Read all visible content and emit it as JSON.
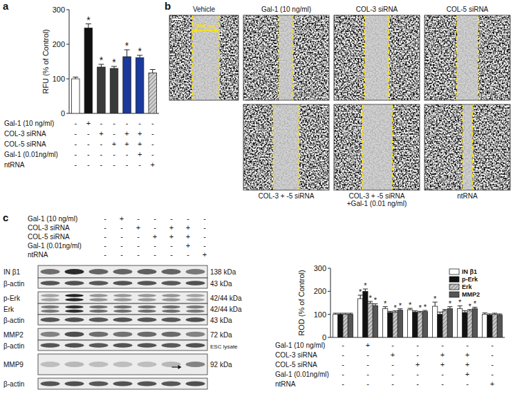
{
  "chart_data": [
    {
      "type": "bar",
      "panel_label": "a",
      "y_label": "RFU (% of Control)",
      "categories": [
        null,
        null,
        null,
        null,
        null,
        null,
        null
      ],
      "values": [
        100,
        247,
        134,
        130,
        164,
        161,
        117
      ],
      "errors": [
        5,
        12,
        8,
        6,
        20,
        7,
        10
      ],
      "colors": [
        "#ffffff",
        "#111111",
        "#3a3a3a",
        "#3a3a3a",
        "#1a3a9c",
        "#1a3a9c",
        "#d0d0d0"
      ],
      "annotations": [
        null,
        "*",
        "*",
        "*",
        "*",
        "*",
        null
      ],
      "ylim": [
        0,
        300
      ],
      "yticks": [
        0,
        100,
        200,
        300
      ],
      "conditions": [
        {
          "label": "Gal-1 (10 ng/ml)",
          "signs": [
            "-",
            "+",
            "-",
            "-",
            "-",
            "-",
            "-"
          ]
        },
        {
          "label": "COL-3 siRNA",
          "signs": [
            "-",
            "-",
            "+",
            "-",
            "+",
            "+",
            "-"
          ]
        },
        {
          "label": "COL-5 siRNA",
          "signs": [
            "-",
            "-",
            "-",
            "+",
            "+",
            "+",
            "-"
          ]
        },
        {
          "label": "Gal-1 (0.01ng/ml)",
          "signs": [
            "-",
            "-",
            "-",
            "-",
            "-",
            "+",
            "-"
          ]
        },
        {
          "label": "ntRNA",
          "signs": [
            "-",
            "-",
            "-",
            "-",
            "-",
            "-",
            "+"
          ]
        }
      ]
    },
    {
      "type": "bar",
      "y_label": "ROD (% of Control)",
      "categories": [
        null,
        null,
        null,
        null,
        null,
        null,
        null
      ],
      "series": [
        {
          "name": "IN β1",
          "color": "#ffffff",
          "values": [
            100,
            168,
            125,
            120,
            135,
            125,
            100
          ],
          "errors": [
            5,
            15,
            8,
            6,
            18,
            12,
            6
          ],
          "annotations": [
            null,
            "*",
            "*",
            "*",
            "*",
            "*",
            null
          ]
        },
        {
          "name": "p-Erk",
          "color": "#111111",
          "values": [
            100,
            200,
            108,
            110,
            100,
            108,
            97
          ],
          "errors": [
            5,
            10,
            5,
            5,
            10,
            8,
            5
          ],
          "annotations": [
            null,
            "*",
            null,
            null,
            null,
            null,
            null
          ]
        },
        {
          "name": "Erk",
          "color": "#c8c8c8",
          "values": [
            100,
            148,
            110,
            108,
            115,
            115,
            100
          ],
          "errors": [
            5,
            8,
            5,
            5,
            6,
            6,
            5
          ],
          "annotations": [
            null,
            "*",
            "*",
            "*",
            null,
            "*",
            null
          ]
        },
        {
          "name": "MMP2",
          "color": "#555555",
          "values": [
            100,
            138,
            118,
            112,
            125,
            125,
            97
          ],
          "errors": [
            5,
            8,
            6,
            5,
            8,
            6,
            5
          ],
          "annotations": [
            null,
            "*",
            "*",
            "*",
            "*",
            "*",
            null
          ]
        }
      ],
      "legend": "top-right",
      "ylim": [
        0,
        300
      ],
      "yticks": [
        0,
        100,
        200,
        300
      ],
      "conditions": [
        {
          "label": "Gal-1 (10 ng/ml)",
          "signs": [
            "-",
            "+",
            "-",
            "-",
            "-",
            "-",
            "-"
          ]
        },
        {
          "label": "COL-3 siRNA",
          "signs": [
            "-",
            "-",
            "+",
            "-",
            "+",
            "+",
            "-"
          ]
        },
        {
          "label": "COL-5 siRNA",
          "signs": [
            "-",
            "-",
            "-",
            "+",
            "+",
            "+",
            "-"
          ]
        },
        {
          "label": "Gal-1 (0.01ng/ml)",
          "signs": [
            "-",
            "-",
            "-",
            "-",
            "-",
            "+",
            "-"
          ]
        },
        {
          "label": "ntRNA",
          "signs": [
            "-",
            "-",
            "-",
            "-",
            "-",
            "-",
            "+"
          ]
        }
      ]
    }
  ],
  "scratch_assay": {
    "panel_label": "b",
    "scale_bar": "500 μm",
    "top_row": [
      [
        "Vehicle"
      ],
      [
        "Gal-1 (10 ng/ml)"
      ],
      [
        "COL-3 siRNA"
      ],
      [
        "COL-5 siRNA"
      ]
    ],
    "bottom_row": [
      [
        "COL-3 + -5 siRNA"
      ],
      [
        "COL-3 + -5 siRNA",
        "+Gal-1 (0.01 ng/ml)"
      ],
      [
        "ntRNA"
      ]
    ]
  },
  "blot": {
    "panel_label": "c",
    "conditions": [
      {
        "label": "Gal-1 (10 ng/ml)",
        "signs": [
          "-",
          "+",
          "-",
          "-",
          "-",
          "-",
          "-"
        ]
      },
      {
        "label": "COL-3 siRNA",
        "signs": [
          "-",
          "-",
          "+",
          "-",
          "+",
          "+",
          "-"
        ]
      },
      {
        "label": "COL-5 siRNA",
        "signs": [
          "-",
          "-",
          "-",
          "+",
          "+",
          "+",
          "-"
        ]
      },
      {
        "label": "Gal-1 (0.01ng/ml)",
        "signs": [
          "-",
          "-",
          "-",
          "-",
          "-",
          "+",
          "-"
        ]
      },
      {
        "label": "ntRNA",
        "signs": [
          "-",
          "-",
          "-",
          "-",
          "-",
          "-",
          "+"
        ]
      }
    ],
    "rows": [
      {
        "name": "IN β1",
        "size": "138 kDa"
      },
      {
        "name": "β-actin",
        "size": "43 kDa"
      },
      {
        "name": "p-Erk",
        "size": "42/44 kDa"
      },
      {
        "name": "Erk",
        "size": "42/44 kDa"
      },
      {
        "name": "β-actin",
        "size": "43 kDa"
      },
      {
        "name": "MMP2",
        "size": "72 kDa"
      },
      {
        "name": "β-actin",
        "size": "ESC lysate"
      },
      {
        "name": "MMP9",
        "size": "92 kDa"
      },
      {
        "name": "β-actin"
      }
    ]
  }
}
